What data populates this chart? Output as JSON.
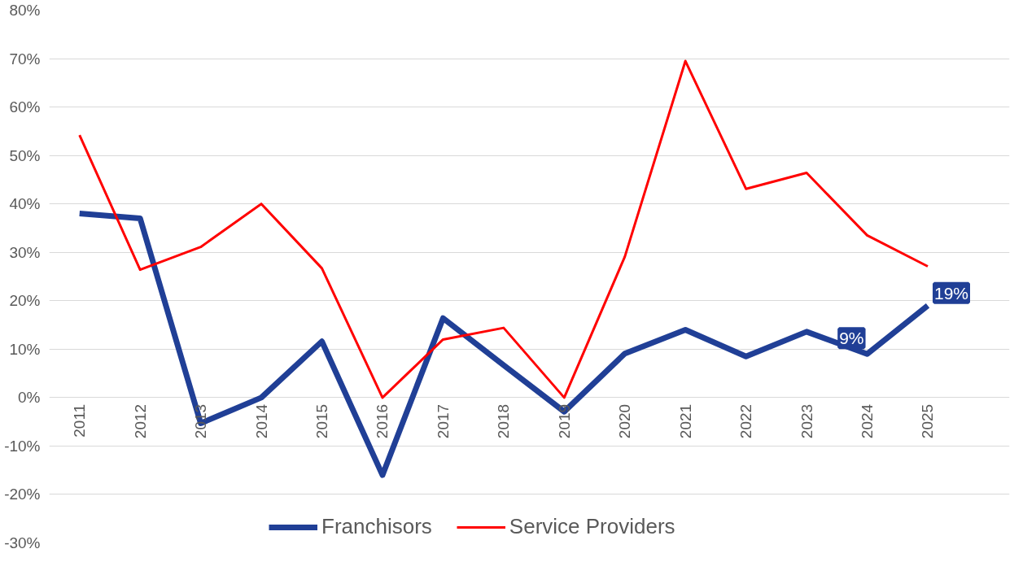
{
  "chart_data": {
    "type": "line",
    "categories": [
      "2011",
      "2012",
      "2013",
      "2014",
      "2015",
      "2016",
      "2017",
      "2018",
      "2019",
      "2020",
      "2021",
      "2022",
      "2023",
      "2024",
      "2025"
    ],
    "series": [
      {
        "name": "Franchisors",
        "color": "#203f96",
        "values": [
          38,
          37,
          -5.3,
          0,
          11.6,
          -16,
          16.4,
          6.7,
          -2.9,
          9.1,
          14,
          8.5,
          13.6,
          9,
          19
        ],
        "value_labels": [
          null,
          null,
          null,
          null,
          null,
          null,
          null,
          null,
          null,
          null,
          null,
          null,
          null,
          "9%",
          "19%"
        ]
      },
      {
        "name": "Service Providers",
        "color": "#ff0000",
        "values": [
          54.2,
          26.4,
          31.1,
          40,
          26.7,
          0,
          12,
          14.4,
          0,
          29.1,
          69.5,
          43.1,
          46.4,
          33.5,
          27.1
        ]
      }
    ],
    "ylim": [
      -30,
      80
    ],
    "yticks": [
      {
        "value": -30,
        "label": "-30%"
      },
      {
        "value": -20,
        "label": "-20%"
      },
      {
        "value": -10,
        "label": "-10%"
      },
      {
        "value": 0,
        "label": "0%"
      },
      {
        "value": 10,
        "label": "10%"
      },
      {
        "value": 20,
        "label": "20%"
      },
      {
        "value": 30,
        "label": "30%"
      },
      {
        "value": 40,
        "label": "40%"
      },
      {
        "value": 50,
        "label": "50%"
      },
      {
        "value": 60,
        "label": "60%"
      },
      {
        "value": 70,
        "label": "70%"
      },
      {
        "value": 80,
        "label": "80%"
      }
    ],
    "grid": "y",
    "legend": "bottom",
    "marker": "none",
    "line_style": "solid"
  }
}
